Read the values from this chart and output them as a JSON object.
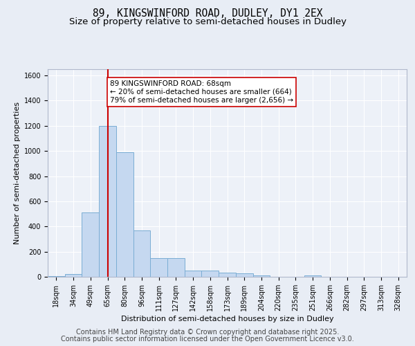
{
  "title_line1": "89, KINGSWINFORD ROAD, DUDLEY, DY1 2EX",
  "title_line2": "Size of property relative to semi-detached houses in Dudley",
  "xlabel": "Distribution of semi-detached houses by size in Dudley",
  "ylabel": "Number of semi-detached properties",
  "categories": [
    "18sqm",
    "34sqm",
    "49sqm",
    "65sqm",
    "80sqm",
    "96sqm",
    "111sqm",
    "127sqm",
    "142sqm",
    "158sqm",
    "173sqm",
    "189sqm",
    "204sqm",
    "220sqm",
    "235sqm",
    "251sqm",
    "266sqm",
    "282sqm",
    "297sqm",
    "313sqm",
    "328sqm"
  ],
  "values": [
    5,
    20,
    510,
    1200,
    990,
    370,
    148,
    148,
    50,
    50,
    35,
    25,
    10,
    0,
    0,
    10,
    0,
    0,
    0,
    0,
    0
  ],
  "bar_color": "#c5d8f0",
  "bar_edge_color": "#7aadd4",
  "vline_x_index": 3,
  "vline_color": "#cc0000",
  "annotation_text": "89 KINGSWINFORD ROAD: 68sqm\n← 20% of semi-detached houses are smaller (664)\n79% of semi-detached houses are larger (2,656) →",
  "annotation_box_facecolor": "#ffffff",
  "annotation_box_edgecolor": "#cc0000",
  "ylim": [
    0,
    1650
  ],
  "yticks": [
    0,
    200,
    400,
    600,
    800,
    1000,
    1200,
    1400,
    1600
  ],
  "background_color": "#e8edf5",
  "plot_background_color": "#edf1f8",
  "footer_line1": "Contains HM Land Registry data © Crown copyright and database right 2025.",
  "footer_line2": "Contains public sector information licensed under the Open Government Licence v3.0.",
  "title_fontsize": 10.5,
  "subtitle_fontsize": 9.5,
  "axis_label_fontsize": 8,
  "tick_fontsize": 7,
  "footer_fontsize": 7,
  "annotation_fontsize": 7.5
}
